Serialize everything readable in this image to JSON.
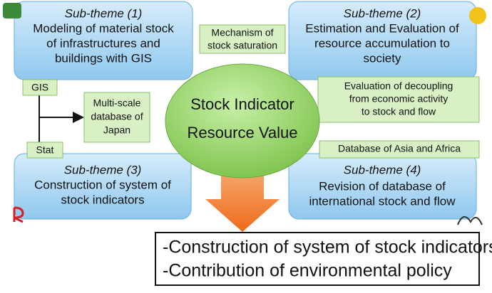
{
  "subthemes": [
    {
      "title": "Sub-theme (1)",
      "lines": [
        "Modeling of material stock",
        "of infrastructures and",
        "buildings with GIS"
      ]
    },
    {
      "title": "Sub-theme (2)",
      "lines": [
        "Estimation and Evaluation of",
        "resource accumulation to",
        "society"
      ]
    },
    {
      "title": "Sub-theme (3)",
      "lines": [
        "Construction of system of",
        "stock indicators"
      ]
    },
    {
      "title": "Sub-theme (4)",
      "lines": [
        "Revision of database of",
        "international stock and flow"
      ]
    }
  ],
  "labels": {
    "mechanism": [
      "Mechanism of",
      "stock saturation"
    ],
    "gis": "GIS",
    "multiscale": [
      "Multi-scale",
      "database of",
      "Japan"
    ],
    "stat": "Stat",
    "decoupling": [
      "Evaluation of decoupling",
      "from economic activity",
      "to stock and flow"
    ],
    "asia": "Database of Asia and Africa"
  },
  "center": [
    "Stock Indicator",
    "Resource Value"
  ],
  "results": [
    "-Construction of system of stock indicators",
    "-Contribution of environmental policy"
  ]
}
